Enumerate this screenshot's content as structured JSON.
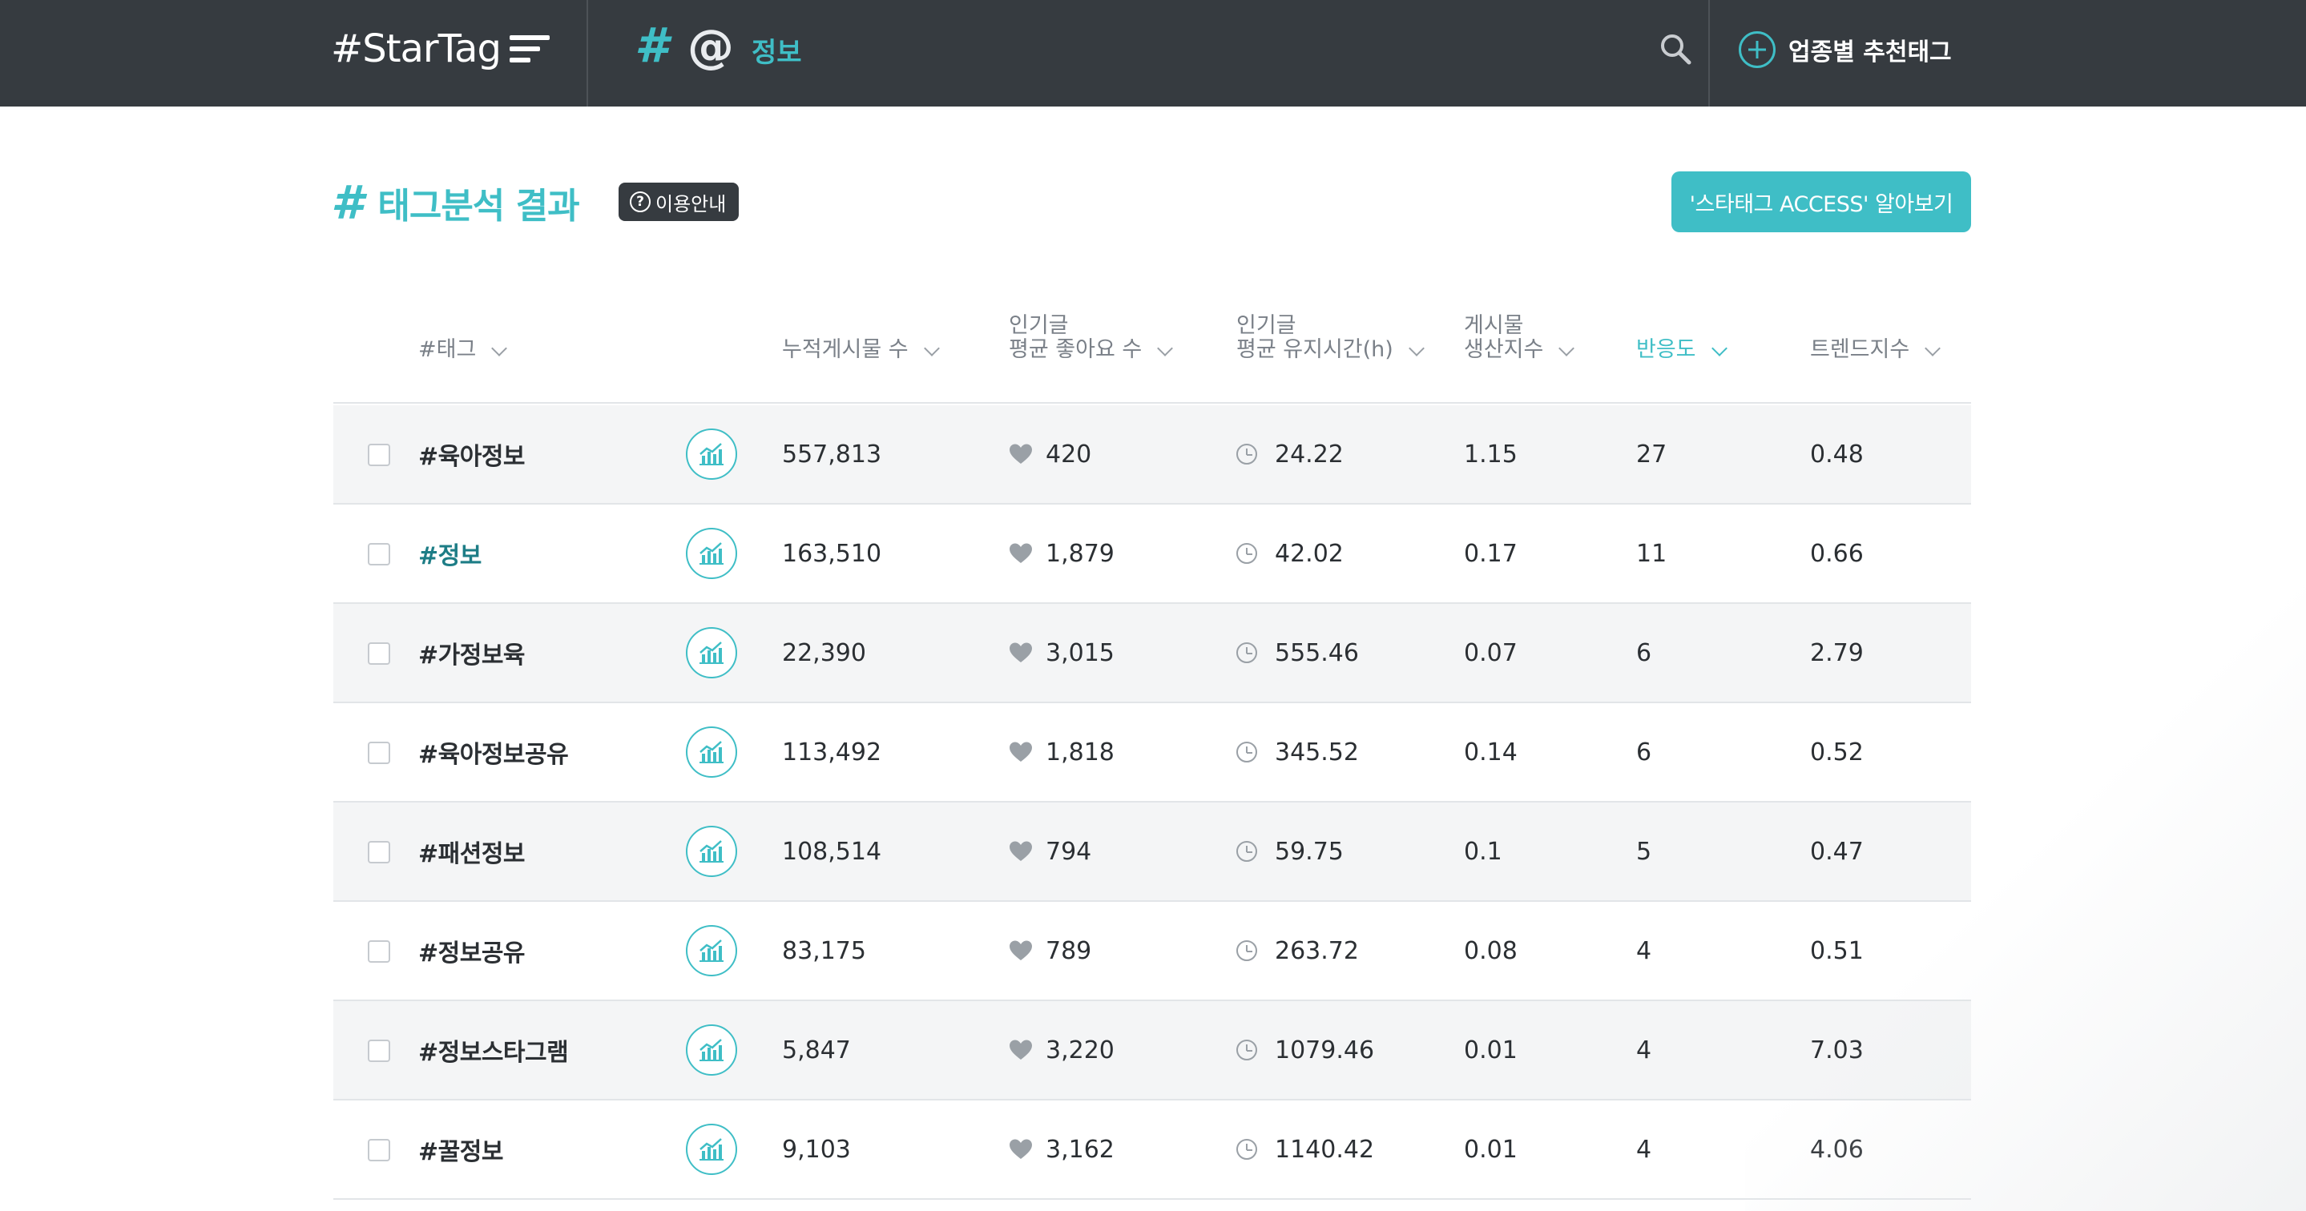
{
  "header": {
    "logo": "#StarTag",
    "nav_hash": "#",
    "nav_at": "@",
    "nav_label": "정보",
    "recommend_label": "업종별 추천태그"
  },
  "title": {
    "hash": "#",
    "text": "태그분석 결과",
    "guide_label": "이용안내",
    "guide_icon": "?",
    "access_button": "'스타태그 ACCESS' 알아보기"
  },
  "colors": {
    "accent": "#3fbec6",
    "header_bg": "#363b40",
    "highlight_tag": "#1d7d86"
  },
  "table": {
    "columns": [
      {
        "label": "#태그",
        "active": false
      },
      {
        "label": "누적게시물 수",
        "active": false
      },
      {
        "label": "인기글\n평균 좋아요 수",
        "active": false
      },
      {
        "label": "인기글\n평균 유지시간(h)",
        "active": false
      },
      {
        "label": "게시물\n생산지수",
        "active": false
      },
      {
        "label": "반응도",
        "active": true
      },
      {
        "label": "트렌드지수",
        "active": false
      }
    ],
    "rows": [
      {
        "tag": "#육아정보",
        "posts": "557,813",
        "likes": "420",
        "hours": "24.22",
        "production": "1.15",
        "response": "27",
        "trend": "0.48",
        "highlight": false
      },
      {
        "tag": "#정보",
        "posts": "163,510",
        "likes": "1,879",
        "hours": "42.02",
        "production": "0.17",
        "response": "11",
        "trend": "0.66",
        "highlight": true
      },
      {
        "tag": "#가정보육",
        "posts": "22,390",
        "likes": "3,015",
        "hours": "555.46",
        "production": "0.07",
        "response": "6",
        "trend": "2.79",
        "highlight": false
      },
      {
        "tag": "#육아정보공유",
        "posts": "113,492",
        "likes": "1,818",
        "hours": "345.52",
        "production": "0.14",
        "response": "6",
        "trend": "0.52",
        "highlight": false
      },
      {
        "tag": "#패션정보",
        "posts": "108,514",
        "likes": "794",
        "hours": "59.75",
        "production": "0.1",
        "response": "5",
        "trend": "0.47",
        "highlight": false
      },
      {
        "tag": "#정보공유",
        "posts": "83,175",
        "likes": "789",
        "hours": "263.72",
        "production": "0.08",
        "response": "4",
        "trend": "0.51",
        "highlight": false
      },
      {
        "tag": "#정보스타그램",
        "posts": "5,847",
        "likes": "3,220",
        "hours": "1079.46",
        "production": "0.01",
        "response": "4",
        "trend": "7.03",
        "highlight": false
      },
      {
        "tag": "#꿀정보",
        "posts": "9,103",
        "likes": "3,162",
        "hours": "1140.42",
        "production": "0.01",
        "response": "4",
        "trend": "4.06",
        "highlight": false
      }
    ]
  },
  "icons": {
    "menu": "hamburger-icon",
    "search": "search-icon",
    "recommend": "plus-circle-icon",
    "chart": "bar-chart-icon",
    "likes": "heart-icon",
    "hours": "clock-icon"
  }
}
